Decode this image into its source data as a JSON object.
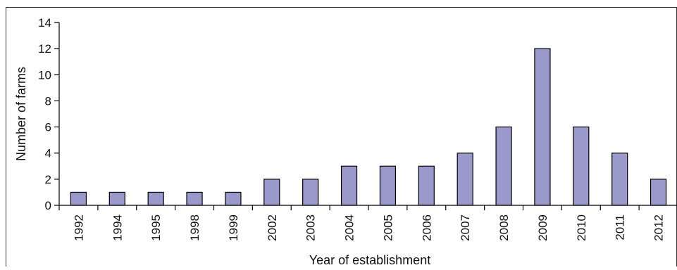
{
  "chart_data": {
    "type": "bar",
    "title": "",
    "xlabel": "Year of establishment",
    "ylabel": "Number of farms",
    "categories": [
      "1992",
      "1994",
      "1995",
      "1998",
      "1999",
      "2002",
      "2003",
      "2004",
      "2005",
      "2006",
      "2007",
      "2008",
      "2009",
      "2010",
      "2011",
      "2012"
    ],
    "values": [
      1,
      1,
      1,
      1,
      1,
      2,
      2,
      3,
      3,
      3,
      4,
      6,
      12,
      6,
      4,
      2
    ],
    "ylim": [
      0,
      14
    ],
    "yticks": [
      0,
      2,
      4,
      6,
      8,
      10,
      12,
      14
    ],
    "grid": false,
    "legend": "none",
    "colors": {
      "bar_fill": "#9999cc",
      "bar_stroke": "#000000",
      "axis": "#000000"
    }
  }
}
